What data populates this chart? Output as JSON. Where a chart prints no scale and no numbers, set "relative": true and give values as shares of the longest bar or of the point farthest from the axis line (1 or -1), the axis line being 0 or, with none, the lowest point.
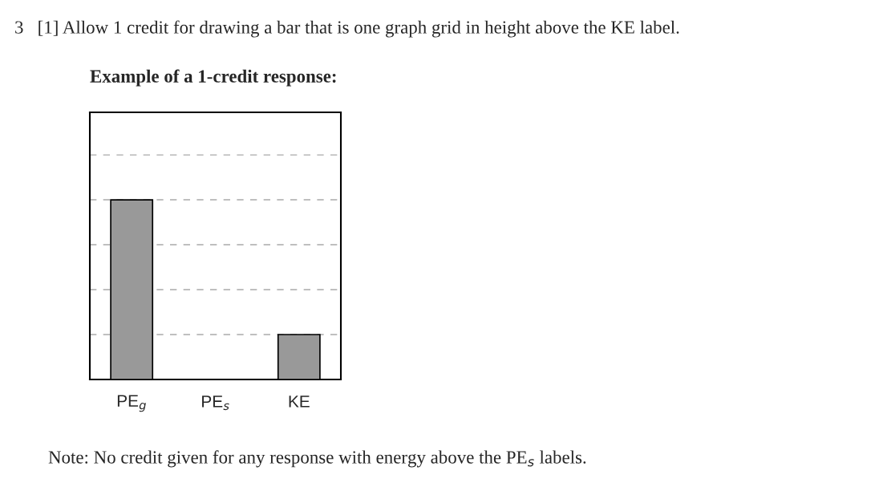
{
  "chart_data": {
    "type": "bar",
    "title": "3   [1] Allow 1 credit for drawing a bar that is one graph grid in height above the KE label.",
    "subtitle": "Example of a 1-credit response:",
    "categories": [
      "PE$_{g}$",
      "PE$_{s}$",
      "KE"
    ],
    "values": [
      1,
      0,
      0.25
    ],
    "color": "#999999",
    "relative": true,
    "grid": "y",
    "annotations": [
      "Note: No credit given for any response with energy above the PE$_{s}$ labels."
    ]
  }
}
